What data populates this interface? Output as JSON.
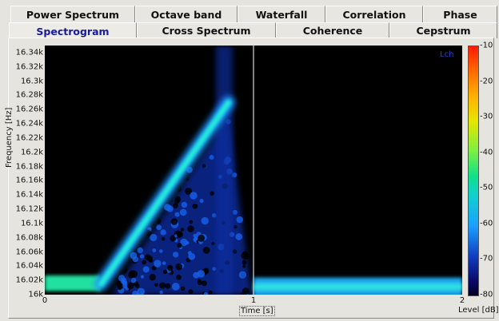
{
  "tabs_row1": [
    "Power Spectrum",
    "Octave band",
    "Waterfall",
    "Correlation",
    "Phase"
  ],
  "tabs_row2": [
    "Spectrogram",
    "Cross Spectrum",
    "Coherence",
    "Cepstrum"
  ],
  "active_tab": "Spectrogram",
  "chart_data": {
    "type": "heatmap",
    "title": "",
    "xlabel": "Time [s]",
    "ylabel": "Frequency [Hz]",
    "xlim": [
      0,
      2
    ],
    "ylim": [
      16000,
      16350
    ],
    "x_ticks": [
      "0",
      "1",
      "2"
    ],
    "y_ticks": [
      "16k",
      "16.02k",
      "16.04k",
      "16.06k",
      "16.08k",
      "16.1k",
      "16.12k",
      "16.14k",
      "16.16k",
      "16.18k",
      "16.2k",
      "16.22k",
      "16.24k",
      "16.26k",
      "16.28k",
      "16.3k",
      "16.32k",
      "16.34k"
    ],
    "colorbar_label": "Level [dB]",
    "colorbar_ticks": [
      "-10",
      "-20",
      "-30",
      "-40",
      "-50",
      "-60",
      "-70",
      "-80"
    ],
    "colorbar_range": [
      -80,
      -10
    ],
    "channel": "Lch",
    "cursor_time": 1.0,
    "features": {
      "baseline_before": {
        "t0": 0.0,
        "t1": 0.27,
        "freq": 16015,
        "level": -50
      },
      "sweep": {
        "t0": 0.27,
        "t1": 0.88,
        "f0": 16015,
        "f1": 16270,
        "level": -55
      },
      "baseline_after": {
        "t0": 1.0,
        "t1": 2.0,
        "freq": 16010,
        "level": -58
      }
    }
  }
}
